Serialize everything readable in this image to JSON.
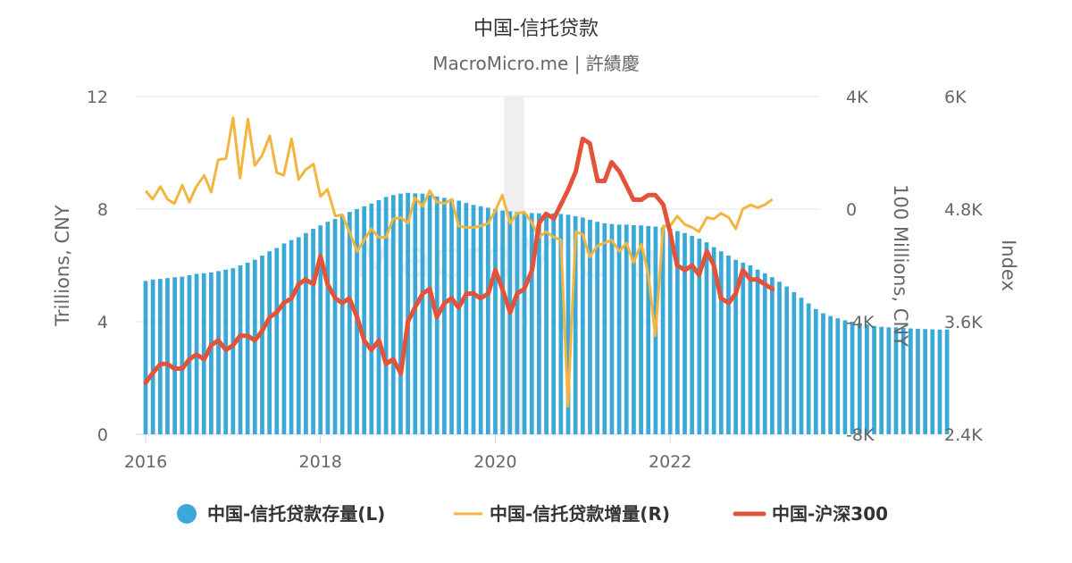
{
  "chart_data": {
    "type": "bar",
    "title": "中国-信托贷款",
    "subtitle": "MacroMicro.me | 許績慶",
    "watermark": "MacroMicro",
    "x_ticks": [
      "2016",
      "2018",
      "2020",
      "2022"
    ],
    "x_range": [
      2016.0,
      2023.5
    ],
    "shaded_period": [
      2020.1,
      2020.33
    ],
    "axes": {
      "left": {
        "title": "Trillions, CNY",
        "range": [
          0,
          12
        ],
        "ticks": [
          "0",
          "4",
          "8",
          "12"
        ]
      },
      "right1": {
        "title": "100 Millions, CNY",
        "range": [
          -8000,
          4000
        ],
        "ticks": [
          "-8K",
          "-4K",
          "0",
          "4K"
        ]
      },
      "right2": {
        "title": "Index",
        "range": [
          2400,
          6000
        ],
        "ticks": [
          "2.4K",
          "3.6K",
          "4.8K",
          "6K"
        ]
      }
    },
    "series": [
      {
        "name": "中国-信托贷款存量(L)",
        "kind": "bar",
        "axis": "left",
        "color": "#3aa9d8",
        "x_start": 2016.0,
        "step_months": 1,
        "values": [
          5.45,
          5.5,
          5.52,
          5.55,
          5.58,
          5.6,
          5.65,
          5.7,
          5.72,
          5.75,
          5.8,
          5.85,
          5.9,
          6.0,
          6.1,
          6.2,
          6.35,
          6.5,
          6.62,
          6.78,
          6.9,
          7.0,
          7.15,
          7.3,
          7.42,
          7.55,
          7.65,
          7.75,
          7.9,
          8.0,
          8.1,
          8.2,
          8.32,
          8.43,
          8.5,
          8.55,
          8.58,
          8.56,
          8.55,
          8.5,
          8.45,
          8.4,
          8.35,
          8.3,
          8.22,
          8.15,
          8.1,
          8.05,
          8.0,
          7.95,
          7.92,
          7.9,
          7.88,
          7.86,
          7.85,
          7.85,
          7.85,
          7.83,
          7.8,
          7.75,
          7.7,
          7.62,
          7.55,
          7.5,
          7.47,
          7.45,
          7.45,
          7.43,
          7.42,
          7.4,
          7.38,
          7.35,
          7.3,
          7.22,
          7.15,
          7.05,
          6.95,
          6.82,
          6.65,
          6.5,
          6.35,
          6.2,
          6.1,
          6.0,
          5.85,
          5.72,
          5.58,
          5.42,
          5.25,
          5.05,
          4.85,
          4.65,
          4.45,
          4.3,
          4.2,
          4.12,
          4.05,
          4.0,
          3.95,
          3.9,
          3.85,
          3.82,
          3.8,
          3.8,
          3.78,
          3.76,
          3.75,
          3.74,
          3.73,
          3.72,
          3.72
        ]
      },
      {
        "name": "中国-信托贷款增量(R)",
        "kind": "line",
        "axis": "right1",
        "color": "#f3b53f",
        "points": [
          [
            2016.0,
            650
          ],
          [
            2016.08,
            350
          ],
          [
            2016.17,
            800
          ],
          [
            2016.25,
            350
          ],
          [
            2016.33,
            200
          ],
          [
            2016.42,
            850
          ],
          [
            2016.5,
            250
          ],
          [
            2016.58,
            800
          ],
          [
            2016.67,
            1200
          ],
          [
            2016.75,
            600
          ],
          [
            2016.83,
            1750
          ],
          [
            2016.92,
            1800
          ],
          [
            2017.0,
            3250
          ],
          [
            2017.08,
            1100
          ],
          [
            2017.17,
            3200
          ],
          [
            2017.25,
            1550
          ],
          [
            2017.33,
            1900
          ],
          [
            2017.42,
            2600
          ],
          [
            2017.5,
            1300
          ],
          [
            2017.58,
            1200
          ],
          [
            2017.67,
            2500
          ],
          [
            2017.75,
            1050
          ],
          [
            2017.83,
            1400
          ],
          [
            2017.92,
            1600
          ],
          [
            2018.0,
            450
          ],
          [
            2018.08,
            700
          ],
          [
            2018.17,
            -250
          ],
          [
            2018.25,
            -200
          ],
          [
            2018.33,
            -800
          ],
          [
            2018.42,
            -1500
          ],
          [
            2018.5,
            -1100
          ],
          [
            2018.58,
            -700
          ],
          [
            2018.67,
            -1000
          ],
          [
            2018.75,
            -1000
          ],
          [
            2018.83,
            -350
          ],
          [
            2018.92,
            -300
          ],
          [
            2019.0,
            -500
          ],
          [
            2019.08,
            400
          ],
          [
            2019.17,
            100
          ],
          [
            2019.25,
            650
          ],
          [
            2019.33,
            250
          ],
          [
            2019.42,
            200
          ],
          [
            2019.5,
            350
          ],
          [
            2019.58,
            -600
          ],
          [
            2019.67,
            -650
          ],
          [
            2019.75,
            -650
          ],
          [
            2019.83,
            -600
          ],
          [
            2019.92,
            -500
          ],
          [
            2020.0,
            -50
          ],
          [
            2020.08,
            500
          ],
          [
            2020.17,
            -500
          ],
          [
            2020.25,
            -150
          ],
          [
            2020.33,
            -100
          ],
          [
            2020.42,
            -500
          ],
          [
            2020.5,
            -1000
          ],
          [
            2020.58,
            -800
          ],
          [
            2020.67,
            -1000
          ],
          [
            2020.75,
            -1100
          ],
          [
            2020.83,
            -7000
          ],
          [
            2020.92,
            -800
          ],
          [
            2021.0,
            -900
          ],
          [
            2021.08,
            -1700
          ],
          [
            2021.17,
            -1300
          ],
          [
            2021.25,
            -1200
          ],
          [
            2021.33,
            -1100
          ],
          [
            2021.42,
            -1500
          ],
          [
            2021.5,
            -1200
          ],
          [
            2021.58,
            -1900
          ],
          [
            2021.67,
            -1250
          ],
          [
            2021.75,
            -2300
          ],
          [
            2021.83,
            -4500
          ],
          [
            2021.92,
            -600
          ],
          [
            2022.0,
            -600
          ],
          [
            2022.08,
            -250
          ],
          [
            2022.17,
            -550
          ],
          [
            2022.25,
            -650
          ],
          [
            2022.33,
            -800
          ],
          [
            2022.42,
            -300
          ],
          [
            2022.5,
            -350
          ],
          [
            2022.58,
            -150
          ],
          [
            2022.67,
            -300
          ],
          [
            2022.75,
            -700
          ],
          [
            2022.83,
            0
          ],
          [
            2022.92,
            150
          ],
          [
            2023.0,
            50
          ],
          [
            2023.08,
            150
          ],
          [
            2023.17,
            350
          ]
        ]
      },
      {
        "name": "中国-沪深300",
        "kind": "line",
        "axis": "right2",
        "color": "#e2533a",
        "points": [
          [
            2016.0,
            2950
          ],
          [
            2016.08,
            3050
          ],
          [
            2016.17,
            3150
          ],
          [
            2016.25,
            3150
          ],
          [
            2016.33,
            3100
          ],
          [
            2016.42,
            3100
          ],
          [
            2016.5,
            3200
          ],
          [
            2016.58,
            3250
          ],
          [
            2016.67,
            3200
          ],
          [
            2016.75,
            3350
          ],
          [
            2016.83,
            3400
          ],
          [
            2016.92,
            3300
          ],
          [
            2017.0,
            3350
          ],
          [
            2017.08,
            3450
          ],
          [
            2017.17,
            3450
          ],
          [
            2017.25,
            3400
          ],
          [
            2017.33,
            3500
          ],
          [
            2017.42,
            3650
          ],
          [
            2017.5,
            3700
          ],
          [
            2017.58,
            3800
          ],
          [
            2017.67,
            3850
          ],
          [
            2017.75,
            4000
          ],
          [
            2017.83,
            4050
          ],
          [
            2017.92,
            4000
          ],
          [
            2018.0,
            4300
          ],
          [
            2018.08,
            4000
          ],
          [
            2018.17,
            3850
          ],
          [
            2018.25,
            3800
          ],
          [
            2018.33,
            3850
          ],
          [
            2018.42,
            3650
          ],
          [
            2018.5,
            3400
          ],
          [
            2018.58,
            3300
          ],
          [
            2018.67,
            3400
          ],
          [
            2018.75,
            3150
          ],
          [
            2018.83,
            3200
          ],
          [
            2018.92,
            3050
          ],
          [
            2019.0,
            3600
          ],
          [
            2019.08,
            3750
          ],
          [
            2019.17,
            3900
          ],
          [
            2019.25,
            3950
          ],
          [
            2019.33,
            3650
          ],
          [
            2019.42,
            3800
          ],
          [
            2019.5,
            3850
          ],
          [
            2019.58,
            3750
          ],
          [
            2019.67,
            3900
          ],
          [
            2019.75,
            3900
          ],
          [
            2019.83,
            3850
          ],
          [
            2019.92,
            3900
          ],
          [
            2020.0,
            4150
          ],
          [
            2020.08,
            3950
          ],
          [
            2020.17,
            3700
          ],
          [
            2020.25,
            3900
          ],
          [
            2020.33,
            3950
          ],
          [
            2020.42,
            4150
          ],
          [
            2020.5,
            4650
          ],
          [
            2020.58,
            4750
          ],
          [
            2020.67,
            4700
          ],
          [
            2020.75,
            4850
          ],
          [
            2020.83,
            5000
          ],
          [
            2020.92,
            5200
          ],
          [
            2021.0,
            5550
          ],
          [
            2021.08,
            5500
          ],
          [
            2021.17,
            5100
          ],
          [
            2021.25,
            5100
          ],
          [
            2021.33,
            5300
          ],
          [
            2021.42,
            5200
          ],
          [
            2021.5,
            5050
          ],
          [
            2021.58,
            4900
          ],
          [
            2021.67,
            4900
          ],
          [
            2021.75,
            4950
          ],
          [
            2021.83,
            4950
          ],
          [
            2021.92,
            4850
          ],
          [
            2022.0,
            4550
          ],
          [
            2022.08,
            4200
          ],
          [
            2022.17,
            4150
          ],
          [
            2022.25,
            4200
          ],
          [
            2022.33,
            4100
          ],
          [
            2022.42,
            4350
          ],
          [
            2022.5,
            4200
          ],
          [
            2022.58,
            3850
          ],
          [
            2022.67,
            3800
          ],
          [
            2022.75,
            3900
          ],
          [
            2022.83,
            4150
          ],
          [
            2022.92,
            4050
          ],
          [
            2023.0,
            4050
          ],
          [
            2023.08,
            4000
          ],
          [
            2023.17,
            3950
          ]
        ]
      }
    ],
    "legend_position": "bottom"
  }
}
